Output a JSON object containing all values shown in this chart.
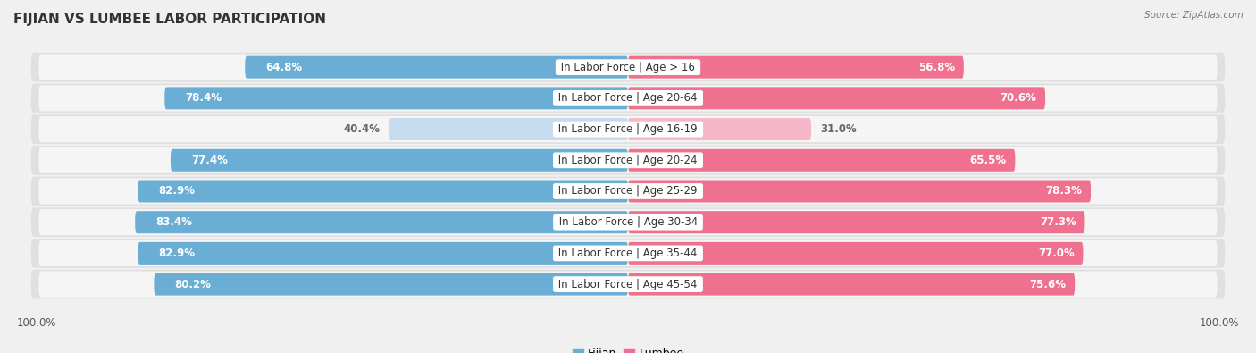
{
  "title": "FIJIAN VS LUMBEE LABOR PARTICIPATION",
  "source": "Source: ZipAtlas.com",
  "categories": [
    "In Labor Force | Age > 16",
    "In Labor Force | Age 20-64",
    "In Labor Force | Age 16-19",
    "In Labor Force | Age 20-24",
    "In Labor Force | Age 25-29",
    "In Labor Force | Age 30-34",
    "In Labor Force | Age 35-44",
    "In Labor Force | Age 45-54"
  ],
  "fijian_values": [
    64.8,
    78.4,
    40.4,
    77.4,
    82.9,
    83.4,
    82.9,
    80.2
  ],
  "lumbee_values": [
    56.8,
    70.6,
    31.0,
    65.5,
    78.3,
    77.3,
    77.0,
    75.6
  ],
  "fijian_color": "#6aaed6",
  "fijian_color_light": "#c6dcee",
  "lumbee_color": "#f07090",
  "lumbee_color_light": "#f5b8c8",
  "label_color_white": "#ffffff",
  "label_color_dark": "#666666",
  "bar_height": 0.72,
  "bg_color": "#f0f0f0",
  "row_bg": "#e8e8e8",
  "row_bg2": "#f0f0f0",
  "max_value": 100.0,
  "title_fontsize": 11,
  "label_fontsize": 8.5,
  "cat_fontsize": 8.5,
  "tick_fontsize": 8.5
}
